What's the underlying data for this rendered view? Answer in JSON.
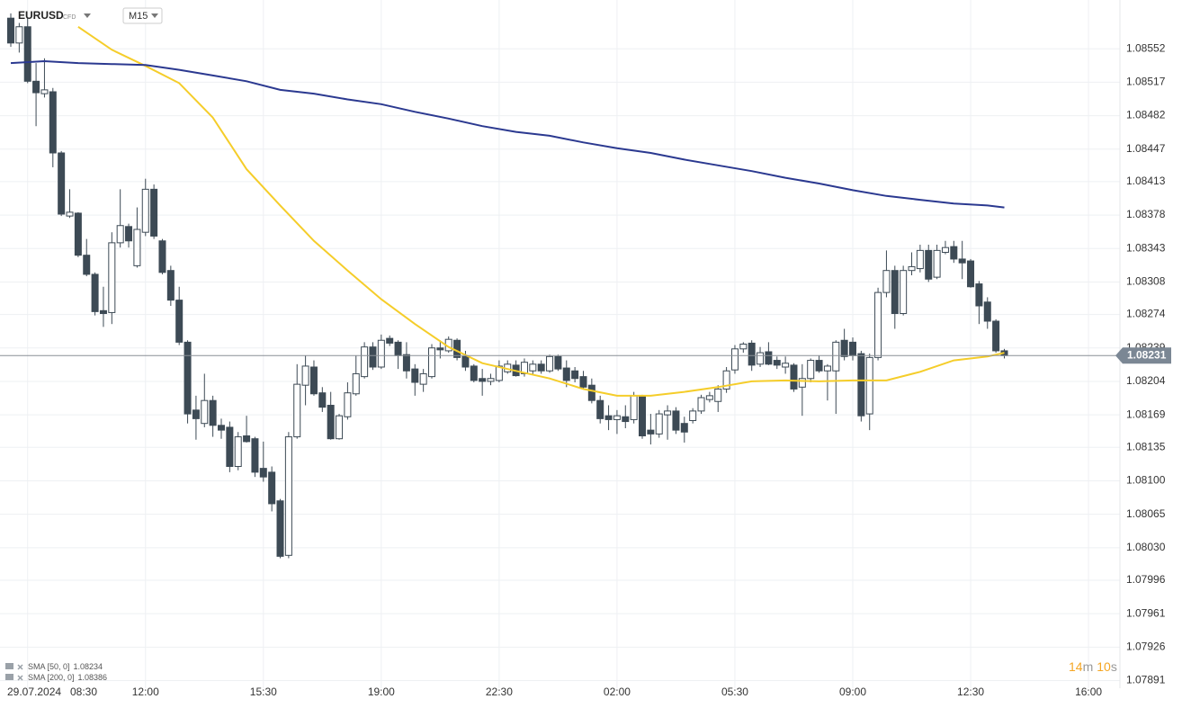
{
  "header": {
    "symbol": "EURUSD",
    "instrument_type": "CFD",
    "timeframe": "M15"
  },
  "countdown": {
    "minutes": "14",
    "minutes_unit": "m",
    "seconds": "10",
    "seconds_unit": "s"
  },
  "chart_data": {
    "type": "candlestick",
    "date_label": "29.07.2024",
    "x": [
      "08:00",
      "08:15",
      "08:30",
      "08:45",
      "09:00",
      "09:15",
      "09:30",
      "09:45",
      "10:00",
      "10:15",
      "10:30",
      "10:45",
      "11:00",
      "11:15",
      "11:30",
      "11:45",
      "12:00",
      "12:15",
      "12:30",
      "12:45",
      "13:00",
      "13:15",
      "13:30",
      "13:45",
      "14:00",
      "14:15",
      "14:30",
      "14:45",
      "15:00",
      "15:15",
      "15:30",
      "15:45",
      "16:00",
      "16:15",
      "16:30",
      "16:45",
      "17:00",
      "17:15",
      "17:30",
      "17:45",
      "18:00",
      "18:15",
      "18:30",
      "18:45",
      "19:00",
      "19:15",
      "19:30",
      "19:45",
      "20:00",
      "20:15",
      "20:30",
      "20:45",
      "21:00",
      "21:15",
      "21:30",
      "21:45",
      "22:00",
      "22:15",
      "22:30",
      "22:45",
      "23:00",
      "23:15",
      "23:30",
      "23:45",
      "00:00",
      "00:15",
      "00:30",
      "00:45",
      "01:00",
      "01:15",
      "01:30",
      "01:45",
      "02:00",
      "02:15",
      "02:30",
      "02:45",
      "03:00",
      "03:15",
      "03:30",
      "03:45",
      "04:00",
      "04:15",
      "04:30",
      "04:45",
      "05:00",
      "05:15",
      "05:30",
      "05:45",
      "06:00",
      "06:15",
      "06:30",
      "06:45",
      "07:00",
      "07:15",
      "07:30",
      "07:45",
      "08:00",
      "08:15",
      "08:30",
      "08:45",
      "09:00",
      "09:15",
      "09:30",
      "09:45",
      "10:00",
      "10:15",
      "10:30",
      "10:45",
      "11:00",
      "11:15",
      "11:30",
      "11:45",
      "12:00",
      "12:15",
      "12:30",
      "12:45",
      "13:00",
      "13:15",
      "13:30"
    ],
    "open": [
      1.08584,
      1.08558,
      1.08575,
      1.08518,
      1.08505,
      1.08507,
      1.08443,
      1.08377,
      1.0838,
      1.08336,
      1.08316,
      1.08278,
      1.08276,
      1.08349,
      1.08366,
      1.08325,
      1.0836,
      1.08405,
      1.08351,
      1.0832,
      1.08289,
      1.08245,
      1.08174,
      1.0816,
      1.08184,
      1.08158,
      1.08156,
      1.08115,
      1.08147,
      1.08144,
      1.08113,
      1.08109,
      1.08079,
      1.08022,
      1.08146,
      1.082,
      1.08219,
      1.08192,
      1.08179,
      1.08144,
      1.08167,
      1.08191,
      1.08209,
      1.0824,
      1.08219,
      1.08249,
      1.08245,
      1.08232,
      1.08217,
      1.08201,
      1.08209,
      1.08239,
      1.08236,
      1.08247,
      1.0823,
      1.0822,
      1.08207,
      1.08204,
      1.08205,
      1.08214,
      1.08221,
      1.08212,
      1.08215,
      1.08222,
      1.08215,
      1.0823,
      1.08218,
      1.08215,
      1.08209,
      1.082,
      1.08184,
      1.08168,
      1.08164,
      1.08167,
      1.08164,
      1.08189,
      1.08153,
      1.08149,
      1.08169,
      1.08173,
      1.0816,
      1.08163,
      1.08173,
      1.08185,
      1.08183,
      1.08196,
      1.08216,
      1.08238,
      1.08244,
      1.08222,
      1.08235,
      1.08226,
      1.08219,
      1.08221,
      1.08198,
      1.08207,
      1.08226,
      1.08215,
      1.08215,
      1.08247,
      1.08245,
      1.08233,
      1.0817,
      1.08229,
      1.08297,
      1.0832,
      1.08275,
      1.0832,
      1.08322,
      1.08341,
      1.08313,
      1.08339,
      1.08345,
      1.08332,
      1.0833,
      1.08306,
      1.08287,
      1.08267,
      1.08236
    ],
    "high": [
      1.08589,
      1.08579,
      1.08584,
      1.08537,
      1.08542,
      1.08511,
      1.08445,
      1.08405,
      1.08381,
      1.08353,
      1.08318,
      1.08303,
      1.0836,
      1.08405,
      1.08369,
      1.08386,
      1.08416,
      1.0841,
      1.08353,
      1.08325,
      1.08303,
      1.08247,
      1.08189,
      1.08212,
      1.08189,
      1.08165,
      1.08162,
      1.08151,
      1.08168,
      1.08146,
      1.08141,
      1.08115,
      1.08081,
      1.08151,
      1.08222,
      1.08231,
      1.08226,
      1.08198,
      1.08193,
      1.0817,
      1.08203,
      1.08231,
      1.08245,
      1.08245,
      1.08253,
      1.08252,
      1.08247,
      1.08245,
      1.08222,
      1.08217,
      1.08243,
      1.08247,
      1.08251,
      1.08249,
      1.08236,
      1.08222,
      1.08217,
      1.08212,
      1.08226,
      1.08226,
      1.08226,
      1.08228,
      1.08226,
      1.08226,
      1.08232,
      1.08232,
      1.08226,
      1.08219,
      1.08215,
      1.08207,
      1.08189,
      1.08179,
      1.08174,
      1.08179,
      1.08193,
      1.0819,
      1.0817,
      1.08174,
      1.08179,
      1.08177,
      1.08167,
      1.08176,
      1.0819,
      1.08193,
      1.082,
      1.08219,
      1.08242,
      1.08245,
      1.08247,
      1.0824,
      1.08245,
      1.0823,
      1.0823,
      1.08223,
      1.08222,
      1.08228,
      1.08231,
      1.08222,
      1.08247,
      1.08259,
      1.0825,
      1.08236,
      1.08233,
      1.08302,
      1.08341,
      1.08325,
      1.08325,
      1.08339,
      1.08347,
      1.08347,
      1.08347,
      1.08351,
      1.08351,
      1.08351,
      1.08332,
      1.08309,
      1.08292,
      1.08269,
      1.08238
    ],
    "low": [
      1.08554,
      1.08548,
      1.08516,
      1.08471,
      1.08501,
      1.08428,
      1.08377,
      1.08375,
      1.08334,
      1.08314,
      1.08273,
      1.08261,
      1.08264,
      1.08344,
      1.08344,
      1.08323,
      1.08356,
      1.08353,
      1.08316,
      1.08283,
      1.08242,
      1.0816,
      1.08143,
      1.08156,
      1.08146,
      1.08144,
      1.08109,
      1.08111,
      1.0814,
      1.08104,
      1.08099,
      1.08068,
      1.08019,
      1.08019,
      1.08144,
      1.08179,
      1.08189,
      1.08172,
      1.08143,
      1.08143,
      1.08164,
      1.08189,
      1.08207,
      1.08216,
      1.08217,
      1.08241,
      1.08217,
      1.08207,
      1.08189,
      1.08193,
      1.08207,
      1.08228,
      1.08234,
      1.08226,
      1.08215,
      1.08203,
      1.08189,
      1.082,
      1.08203,
      1.08212,
      1.08209,
      1.08209,
      1.08211,
      1.08212,
      1.08213,
      1.08215,
      1.08198,
      1.08203,
      1.08196,
      1.08181,
      1.0816,
      1.08153,
      1.08149,
      1.08155,
      1.0816,
      1.08144,
      1.08138,
      1.08145,
      1.08143,
      1.08149,
      1.0814,
      1.0816,
      1.0817,
      1.08182,
      1.08172,
      1.08192,
      1.08212,
      1.08234,
      1.08215,
      1.08219,
      1.08221,
      1.08217,
      1.08212,
      1.08193,
      1.08168,
      1.08203,
      1.08213,
      1.08184,
      1.0817,
      1.08226,
      1.08226,
      1.08162,
      1.08153,
      1.08226,
      1.08292,
      1.08259,
      1.08273,
      1.08315,
      1.08318,
      1.08308,
      1.08311,
      1.08337,
      1.08328,
      1.08311,
      1.08302,
      1.08264,
      1.08259,
      1.08234,
      1.08228
    ],
    "close": [
      1.08558,
      1.08575,
      1.08518,
      1.08506,
      1.08509,
      1.08443,
      1.08379,
      1.08381,
      1.08336,
      1.08316,
      1.08277,
      1.08275,
      1.08349,
      1.08367,
      1.08351,
      1.08363,
      1.08405,
      1.08356,
      1.08318,
      1.08289,
      1.08245,
      1.0817,
      1.08165,
      1.08184,
      1.08158,
      1.08153,
      1.08115,
      1.08146,
      1.08141,
      1.08109,
      1.08104,
      1.08076,
      1.08021,
      1.08146,
      1.08201,
      1.0822,
      1.08191,
      1.08177,
      1.08144,
      1.08168,
      1.08192,
      1.08212,
      1.0824,
      1.08219,
      1.08247,
      1.08244,
      1.08231,
      1.08215,
      1.08203,
      1.08212,
      1.08239,
      1.08237,
      1.08248,
      1.08229,
      1.08219,
      1.08205,
      1.08204,
      1.08207,
      1.0822,
      1.08222,
      1.0821,
      1.08224,
      1.08222,
      1.08215,
      1.0823,
      1.08217,
      1.08205,
      1.08207,
      1.08198,
      1.08184,
      1.08165,
      1.08164,
      1.08168,
      1.08162,
      1.08189,
      1.08147,
      1.08149,
      1.0817,
      1.08173,
      1.08153,
      1.08151,
      1.08173,
      1.08187,
      1.08189,
      1.08196,
      1.08215,
      1.08238,
      1.08243,
      1.08221,
      1.08234,
      1.08222,
      1.08221,
      1.08223,
      1.08196,
      1.08207,
      1.08226,
      1.08215,
      1.0822,
      1.08245,
      1.0823,
      1.08231,
      1.08168,
      1.08229,
      1.08297,
      1.0832,
      1.08275,
      1.0832,
      1.08324,
      1.08341,
      1.08311,
      1.08341,
      1.08344,
      1.08332,
      1.08328,
      1.08303,
      1.08283,
      1.08267,
      1.08236,
      1.08231
    ],
    "up_color": "#ffffff",
    "down_color": "#3d4a55",
    "series": [
      {
        "name": "SMA [50, 0]",
        "color": "#f5cd2a",
        "x": [
          "10:00",
          "11:00",
          "12:00",
          "13:00",
          "14:00",
          "15:00",
          "16:00",
          "17:00",
          "18:00",
          "19:00",
          "20:00",
          "21:00",
          "22:00",
          "23:00",
          "00:00",
          "01:00",
          "02:00",
          "03:00",
          "04:00",
          "05:00",
          "06:00",
          "07:00",
          "08:00",
          "09:00",
          "10:00",
          "11:00",
          "12:00",
          "13:00",
          "13:30"
        ],
        "values": [
          1.08575,
          1.08551,
          1.08534,
          1.08516,
          1.0848,
          1.08426,
          1.08388,
          1.08351,
          1.0832,
          1.0829,
          1.08264,
          1.0824,
          1.08223,
          1.08215,
          1.08207,
          1.08196,
          1.08189,
          1.08189,
          1.08193,
          1.08198,
          1.08204,
          1.08205,
          1.08204,
          1.08205,
          1.08205,
          1.08214,
          1.08226,
          1.0823,
          1.08234
        ]
      },
      {
        "name": "SMA [200, 0]",
        "color": "#2b3990",
        "x": [
          "08:00",
          "09:00",
          "10:00",
          "11:00",
          "12:00",
          "13:00",
          "14:00",
          "15:00",
          "16:00",
          "17:00",
          "18:00",
          "19:00",
          "20:00",
          "21:00",
          "22:00",
          "23:00",
          "00:00",
          "01:00",
          "02:00",
          "03:00",
          "04:00",
          "05:00",
          "06:00",
          "07:00",
          "08:00",
          "09:00",
          "10:00",
          "11:00",
          "12:00",
          "13:00",
          "13:30"
        ],
        "values": [
          1.08537,
          1.08539,
          1.08537,
          1.08536,
          1.08535,
          1.0853,
          1.08524,
          1.08518,
          1.08509,
          1.08505,
          1.08499,
          1.08494,
          1.08486,
          1.08479,
          1.08471,
          1.08465,
          1.08461,
          1.08454,
          1.08448,
          1.08443,
          1.08436,
          1.0843,
          1.08424,
          1.08417,
          1.08411,
          1.08404,
          1.08398,
          1.08394,
          1.0839,
          1.08388,
          1.08386
        ]
      }
    ],
    "last_price": 1.08231,
    "ylim": [
      1.07883,
      1.08603
    ],
    "yticks": [
      1.08552,
      1.08517,
      1.08482,
      1.08447,
      1.08413,
      1.08378,
      1.08343,
      1.08308,
      1.08274,
      1.08239,
      1.08204,
      1.08169,
      1.08135,
      {
        "value": 1.081,
        "label": "1.08100"
      },
      1.08065,
      {
        "value": 1.0803,
        "label": "1.08030"
      },
      1.07996,
      1.07961,
      1.07926,
      1.07891
    ],
    "xticks": [
      "08:30",
      "12:00",
      "15:30",
      "19:00",
      "22:30",
      "02:00",
      "05:30",
      "09:00",
      "12:30",
      "16:00"
    ],
    "grid": true
  }
}
